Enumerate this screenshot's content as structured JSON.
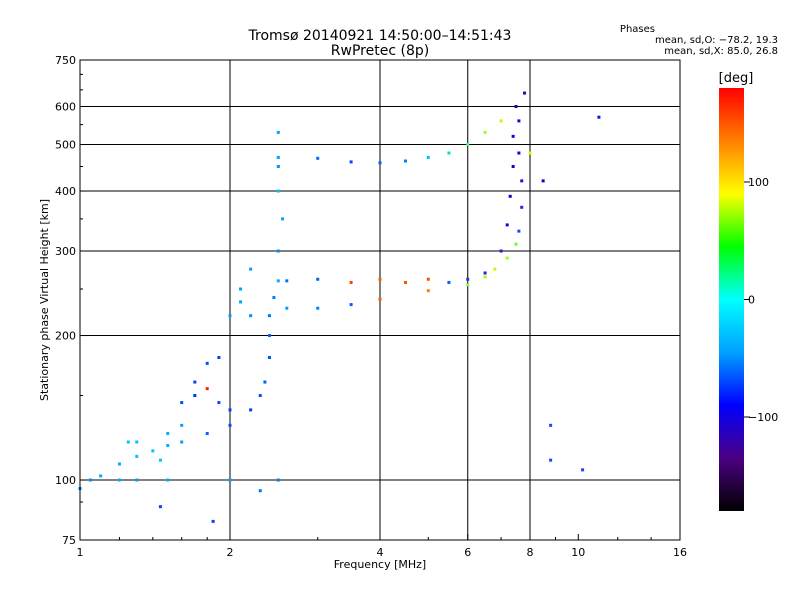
{
  "chart_data": {
    "type": "scatter",
    "title": "Tromsø 20140921 14:50:00–14:51:43",
    "subtitle": "RwPretec (8p)",
    "xlabel": "Frequency [MHz]",
    "ylabel": "Stationary phase Virtual Height [km]",
    "x_scale": "log",
    "y_scale": "log",
    "xlim": [
      1,
      16
    ],
    "ylim": [
      75,
      750
    ],
    "x_ticks": [
      1,
      2,
      4,
      6,
      8,
      10,
      16
    ],
    "x_tick_labels": [
      "1",
      "2",
      "4",
      "6",
      "8",
      "10",
      "16"
    ],
    "y_ticks": [
      75,
      100,
      200,
      300,
      400,
      500,
      600,
      750
    ],
    "y_tick_labels": [
      "75",
      "100",
      "200",
      "300",
      "400",
      "500",
      "600",
      "750"
    ],
    "grid": true,
    "phases": {
      "heading": "Phases",
      "line_o": "mean, sd,O: −78.2, 19.3",
      "line_x": "mean, sd,X:  85.0, 26.8"
    },
    "colorbar": {
      "unit": "[deg]",
      "range": [
        -180,
        180
      ],
      "ticks": [
        100,
        0,
        -100
      ],
      "tick_labels": [
        "100",
        "0",
        "−100"
      ],
      "colormap": [
        "#000000",
        "#4b0082",
        "#0000ff",
        "#00a0ff",
        "#00ffff",
        "#00ff00",
        "#ffff00",
        "#ff8000",
        "#ff0000"
      ]
    },
    "series": [
      {
        "points": [
          [
            2.5,
            470
          ],
          [
            3.0,
            468
          ],
          [
            3.5,
            460
          ],
          [
            4.0,
            458
          ],
          [
            4.5,
            462
          ],
          [
            5.0,
            470
          ],
          [
            5.5,
            480
          ],
          [
            6.0,
            500
          ],
          [
            6.5,
            530
          ],
          [
            7.0,
            560
          ],
          [
            7.5,
            600
          ],
          [
            7.8,
            640
          ],
          [
            7.6,
            560
          ],
          [
            7.6,
            480
          ],
          [
            7.7,
            420
          ],
          [
            7.7,
            370
          ],
          [
            7.6,
            330
          ],
          [
            7.5,
            310
          ],
          [
            7.2,
            290
          ],
          [
            6.8,
            275
          ],
          [
            6.5,
            265
          ],
          [
            6.0,
            255
          ],
          [
            5.0,
            248
          ],
          [
            4.0,
            238
          ],
          [
            3.5,
            232
          ],
          [
            3.0,
            228
          ],
          [
            2.6,
            228
          ],
          [
            2.2,
            220
          ],
          [
            2.0,
            220
          ],
          [
            2.6,
            260
          ],
          [
            3.0,
            262
          ],
          [
            3.5,
            258
          ],
          [
            4.0,
            262
          ],
          [
            4.5,
            258
          ],
          [
            5.0,
            262
          ],
          [
            5.5,
            258
          ],
          [
            6.0,
            262
          ],
          [
            6.5,
            270
          ],
          [
            7.0,
            300
          ],
          [
            7.2,
            340
          ],
          [
            7.3,
            390
          ],
          [
            7.4,
            450
          ],
          [
            7.4,
            520
          ],
          [
            7.5,
            600
          ],
          [
            2.5,
            530
          ],
          [
            2.5,
            450
          ],
          [
            2.5,
            400
          ],
          [
            2.55,
            350
          ],
          [
            2.5,
            300
          ],
          [
            2.5,
            260
          ],
          [
            2.45,
            240
          ],
          [
            2.4,
            220
          ],
          [
            2.4,
            200
          ],
          [
            2.4,
            180
          ],
          [
            2.35,
            160
          ],
          [
            2.3,
            150
          ],
          [
            2.2,
            140
          ],
          [
            2.0,
            130
          ],
          [
            1.8,
            125
          ],
          [
            1.6,
            120
          ],
          [
            1.5,
            118
          ],
          [
            1.4,
            115
          ],
          [
            1.3,
            112
          ],
          [
            1.2,
            108
          ],
          [
            1.1,
            102
          ],
          [
            1.05,
            100
          ],
          [
            1.0,
            96
          ],
          [
            1.7,
            150
          ],
          [
            1.8,
            155
          ],
          [
            1.9,
            145
          ],
          [
            2.0,
            140
          ],
          [
            1.7,
            160
          ],
          [
            1.6,
            130
          ],
          [
            1.5,
            125
          ],
          [
            1.45,
            110
          ],
          [
            1.3,
            100
          ],
          [
            1.2,
            100
          ],
          [
            1.25,
            120
          ],
          [
            1.3,
            120
          ],
          [
            1.6,
            145
          ],
          [
            2.1,
            235
          ],
          [
            2.1,
            250
          ],
          [
            2.2,
            275
          ],
          [
            1.9,
            180
          ],
          [
            1.8,
            175
          ],
          [
            2.5,
            100
          ],
          [
            2.0,
            100
          ],
          [
            1.5,
            100
          ],
          [
            2.3,
            95
          ],
          [
            1.45,
            88
          ],
          [
            1.85,
            82
          ],
          [
            8.5,
            420
          ],
          [
            8.8,
            130
          ],
          [
            8.8,
            110
          ],
          [
            10.2,
            105
          ],
          [
            11.0,
            570
          ],
          [
            8.0,
            480
          ]
        ],
        "colors": [
          "#00a0ff",
          "#0070ff",
          "#1040ff",
          "#0060ff",
          "#0080ff",
          "#00c0ff",
          "#00e0c0",
          "#40ff80",
          "#a0ff20",
          "#c0ff00",
          "#2020e0",
          "#3000c0",
          "#2000d0",
          "#2000d0",
          "#2010e0",
          "#3020e0",
          "#2040ff",
          "#60ff40",
          "#a0ff20",
          "#c0ff00",
          "#a0ff20",
          "#80ff40",
          "#ff8000",
          "#ff6000",
          "#0060ff",
          "#0080ff",
          "#00a0ff",
          "#0090ff",
          "#00a0ff",
          "#0070ff",
          "#0060ff",
          "#ff4000",
          "#ff6000",
          "#ff5000",
          "#ff5000",
          "#0060ff",
          "#3030e0",
          "#3020d0",
          "#2020d0",
          "#2000d0",
          "#1000c0",
          "#1000c0",
          "#2000d0",
          "#3000c0",
          "#00a0ff",
          "#0090ff",
          "#00c0ff",
          "#00a0ff",
          "#0090ff",
          "#00b0ff",
          "#0080ff",
          "#0070ff",
          "#0060ff",
          "#0050ff",
          "#0060ff",
          "#0050ff",
          "#0040ff",
          "#0050ff",
          "#0060ff",
          "#00a0ff",
          "#00b0ff",
          "#00c0ff",
          "#00c0ff",
          "#00b0ff",
          "#00b0ff",
          "#0090ff",
          "#0080ff",
          "#0030ff",
          "#ff2000",
          "#1040ff",
          "#0040ff",
          "#0040ff",
          "#00a0ff",
          "#00b0ff",
          "#00c0ff",
          "#00a0ff",
          "#00b0ff",
          "#00c0ff",
          "#00c0ff",
          "#0050ff",
          "#00a0ff",
          "#00a0ff",
          "#00a0ff",
          "#0040ff",
          "#0050ff",
          "#0080ff",
          "#00a0ff",
          "#00b0ff",
          "#0070ff",
          "#0040ff",
          "#0040ff",
          "#1000c0",
          "#2040ff",
          "#2040ff",
          "#2040ff",
          "#0020d0",
          "#d0ff00"
        ]
      }
    ]
  }
}
